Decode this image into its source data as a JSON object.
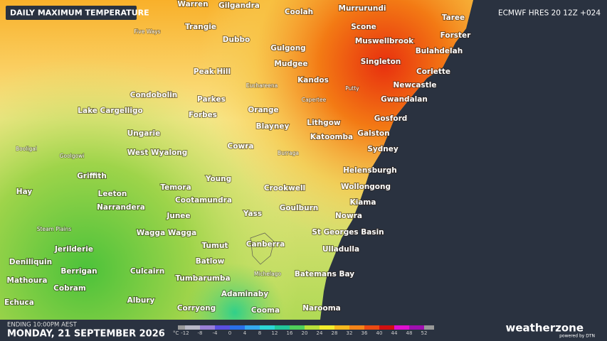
{
  "header": {
    "title": "DAILY MAXIMUM TEMPERATURE",
    "model": "ECMWF HRES 20 12Z +024"
  },
  "footer": {
    "ending": "ENDING 10:00PM AEST",
    "date": "MONDAY, 21 SEPTEMBER 2026",
    "brand": "weatherzone",
    "powered": "powered by DTN"
  },
  "legend": {
    "unit": "°C",
    "ticks": [
      -12,
      -8,
      -4,
      0,
      4,
      8,
      12,
      16,
      20,
      24,
      28,
      32,
      36,
      40,
      44,
      48,
      52
    ],
    "colors": [
      "#b9b9c6",
      "#9a7fd6",
      "#5a4fe0",
      "#2a6fe8",
      "#35a8f0",
      "#2dd6d6",
      "#22c79a",
      "#4fcf5a",
      "#b7de3a",
      "#f2ec2c",
      "#f7b91e",
      "#f48418",
      "#ea4a12",
      "#d01010",
      "#e010d0",
      "#a010b0"
    ]
  },
  "towns": [
    "Warren",
    "Gilgandra",
    "Coolah",
    "Murrurundi",
    "Taree",
    "Trangie",
    "Scone",
    "Forster",
    "Dubbo",
    "Gulgong",
    "Muswellbrook",
    "Bulahdelah",
    "Mudgee",
    "Singleton",
    "Peak Hill",
    "Corlette",
    "Kandos",
    "Newcastle",
    "Condobolin",
    "Parkes",
    "Gwandalan",
    "Lake Cargelligo",
    "Forbes",
    "Orange",
    "Lithgow",
    "Gosford",
    "Blayney",
    "Katoomba",
    "Galston",
    "Ungarie",
    "Cowra",
    "Sydney",
    "West Wyalong",
    "Griffith",
    "Young",
    "Helensburgh",
    "Crookwell",
    "Wollongong",
    "Temora",
    "Hay",
    "Leeton",
    "Cootamundra",
    "Kiama",
    "Narrandera",
    "Goulburn",
    "Junee",
    "Yass",
    "Nowra",
    "Wagga Wagga",
    "St Georges Basin",
    "Canberra",
    "Tumut",
    "Ulladulla",
    "Jerilderie",
    "Deniliquin",
    "Batlow",
    "Berrigan",
    "Culcairn",
    "Batemans Bay",
    "Mathoura",
    "Tumbarumba",
    "Cobram",
    "Adaminaby",
    "Echuca",
    "Albury",
    "Corryong",
    "Cooma",
    "Narooma"
  ],
  "small_towns": [
    "Five Ways",
    "Euchareena",
    "Putty",
    "Capertee",
    "Booligal",
    "Goolgowi",
    "Burraga",
    "Steam Plains",
    "Michelago"
  ]
}
